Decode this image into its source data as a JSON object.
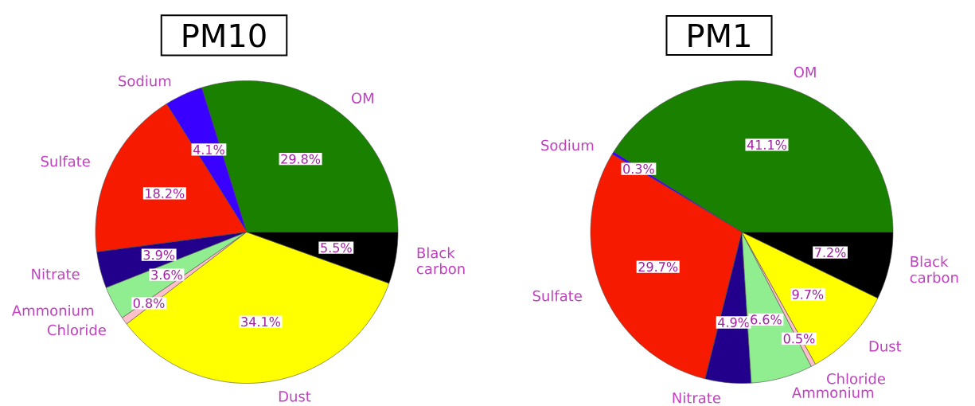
{
  "chart_data": [
    {
      "type": "pie",
      "title": "PM10",
      "categories": [
        "OM",
        "Sodium",
        "Sulfate",
        "Nitrate",
        "Ammonium",
        "Chloride",
        "Dust",
        "Black carbon"
      ],
      "values": [
        29.8,
        4.1,
        18.2,
        3.9,
        3.6,
        0.8,
        34.1,
        5.5
      ],
      "value_labels": [
        "29.8%",
        "4.1%",
        "18.2%",
        "3.9%",
        "3.6%",
        "0.8%",
        "34.1%",
        "5.5%"
      ],
      "colors": [
        "#1a8000",
        "#3a00ff",
        "#f51a00",
        "#22008c",
        "#90ee90",
        "#ffc0cb",
        "#ffff00",
        "#000000"
      ]
    },
    {
      "type": "pie",
      "title": "PM1",
      "categories": [
        "OM",
        "Sodium",
        "Sulfate",
        "Nitrate",
        "Ammonium",
        "Chloride",
        "Dust",
        "Black carbon"
      ],
      "values": [
        41.1,
        0.3,
        29.7,
        4.9,
        6.6,
        0.5,
        9.7,
        7.2
      ],
      "value_labels": [
        "41.1%",
        "0.3%",
        "29.7%",
        "4.9%",
        "6.6%",
        "0.5%",
        "9.7%",
        "7.2%"
      ],
      "colors": [
        "#1a8000",
        "#3a00ff",
        "#f51a00",
        "#22008c",
        "#90ee90",
        "#ffc0cb",
        "#ffff00",
        "#000000"
      ]
    }
  ]
}
